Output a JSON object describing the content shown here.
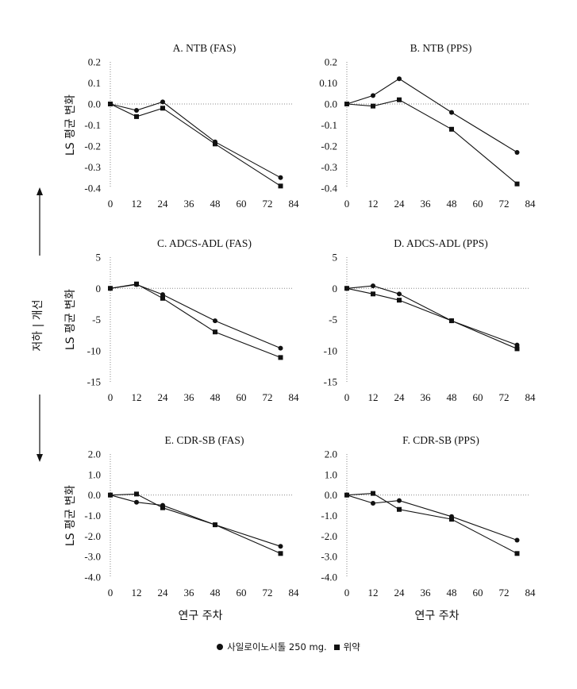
{
  "side_label": "저하 | 개선",
  "legend": {
    "items": [
      {
        "label": "사일로이노시톨 250 mg.",
        "marker": "circle"
      },
      {
        "label": "위약",
        "marker": "square"
      }
    ]
  },
  "chart_data": [
    {
      "type": "line",
      "title": "A. NTB (FAS)",
      "ylabel": "LS 평균 변화",
      "xlabel": "",
      "x": [
        0,
        12,
        24,
        48,
        78
      ],
      "xticks": [
        0,
        12,
        24,
        36,
        48,
        60,
        72,
        84
      ],
      "xlim": [
        0,
        84
      ],
      "ylim": [
        -0.4,
        0.2
      ],
      "ytick_labels": [
        "0.2",
        "0.1",
        "0.0",
        "-0.1",
        "-0.2",
        "-0.3",
        "-0.4"
      ],
      "series": [
        {
          "marker": "circle",
          "values": [
            0,
            -0.03,
            0.01,
            -0.18,
            -0.35
          ]
        },
        {
          "marker": "square",
          "values": [
            0,
            -0.06,
            -0.02,
            -0.19,
            -0.39
          ]
        }
      ]
    },
    {
      "type": "line",
      "title": "B. NTB (PPS)",
      "ylabel": "",
      "xlabel": "",
      "x": [
        0,
        12,
        24,
        48,
        78
      ],
      "xticks": [
        0,
        12,
        24,
        36,
        48,
        60,
        72,
        84
      ],
      "xlim": [
        0,
        84
      ],
      "ylim": [
        -0.4,
        0.2
      ],
      "ytick_labels": [
        "0.2",
        "0.10",
        "0.0",
        "-0.1",
        "-0.2",
        "-0.3",
        "-0.4"
      ],
      "series": [
        {
          "marker": "circle",
          "values": [
            0,
            0.04,
            0.12,
            -0.04,
            -0.23
          ]
        },
        {
          "marker": "square",
          "values": [
            0,
            -0.01,
            0.02,
            -0.12,
            -0.38
          ]
        }
      ]
    },
    {
      "type": "line",
      "title": "C. ADCS-ADL (FAS)",
      "ylabel": "LS 평균 변화",
      "xlabel": "",
      "x": [
        0,
        12,
        24,
        48,
        78
      ],
      "xticks": [
        0,
        12,
        24,
        36,
        48,
        60,
        72,
        84
      ],
      "xlim": [
        0,
        84
      ],
      "ylim": [
        -15,
        5
      ],
      "ytick_labels": [
        "5",
        "0",
        "-5",
        "-10",
        "-15"
      ],
      "series": [
        {
          "marker": "circle",
          "values": [
            0,
            0.6,
            -1.0,
            -5.2,
            -9.6
          ]
        },
        {
          "marker": "square",
          "values": [
            0,
            0.7,
            -1.6,
            -7.0,
            -11.1
          ]
        }
      ]
    },
    {
      "type": "line",
      "title": "D. ADCS-ADL (PPS)",
      "ylabel": "",
      "xlabel": "",
      "x": [
        0,
        12,
        24,
        48,
        78
      ],
      "xticks": [
        0,
        12,
        24,
        36,
        48,
        60,
        72,
        84
      ],
      "xlim": [
        0,
        84
      ],
      "ylim": [
        -15,
        5
      ],
      "ytick_labels": [
        "5",
        "0",
        "-5",
        "-10",
        "-15"
      ],
      "series": [
        {
          "marker": "circle",
          "values": [
            0,
            0.4,
            -0.9,
            -5.2,
            -9.1
          ]
        },
        {
          "marker": "square",
          "values": [
            0,
            -0.9,
            -1.9,
            -5.2,
            -9.7
          ]
        }
      ]
    },
    {
      "type": "line",
      "title": "E. CDR-SB (FAS)",
      "ylabel": "LS 평균 변화",
      "xlabel": "연구 주차",
      "x": [
        0,
        12,
        24,
        48,
        78
      ],
      "xticks": [
        0,
        12,
        24,
        36,
        48,
        60,
        72,
        84
      ],
      "xlim": [
        0,
        84
      ],
      "ylim": [
        -4,
        2
      ],
      "ytick_labels": [
        "2.0",
        "1.0",
        "0.0",
        "-1.0",
        "-2.0",
        "-3.0",
        "-4.0"
      ],
      "series": [
        {
          "marker": "circle",
          "values": [
            0,
            -0.35,
            -0.5,
            -1.45,
            -2.5
          ]
        },
        {
          "marker": "square",
          "values": [
            0,
            0.05,
            -0.62,
            -1.45,
            -2.85
          ]
        }
      ]
    },
    {
      "type": "line",
      "title": "F. CDR-SB (PPS)",
      "ylabel": "",
      "xlabel": "연구 주차",
      "x": [
        0,
        12,
        24,
        48,
        78
      ],
      "xticks": [
        0,
        12,
        24,
        36,
        48,
        60,
        72,
        84
      ],
      "xlim": [
        0,
        84
      ],
      "ylim": [
        -4,
        2
      ],
      "ytick_labels": [
        "2.0",
        "1.0",
        "0.0",
        "-1.0",
        "-2.0",
        "-3.0",
        "-4.0"
      ],
      "series": [
        {
          "marker": "circle",
          "values": [
            0,
            -0.4,
            -0.27,
            -1.05,
            -2.2
          ]
        },
        {
          "marker": "square",
          "values": [
            0,
            0.08,
            -0.7,
            -1.18,
            -2.85
          ]
        }
      ]
    }
  ]
}
